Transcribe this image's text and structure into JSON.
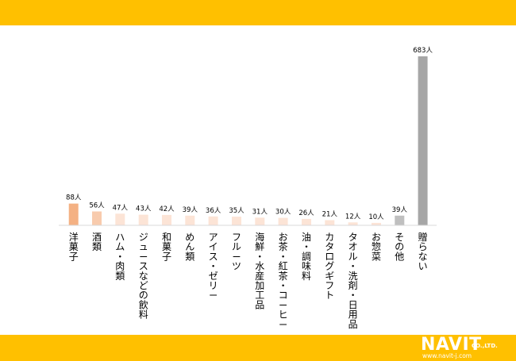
{
  "chart_data": {
    "type": "bar",
    "categories": [
      "洋菓子",
      "酒類",
      "ハム・肉類",
      "ジュースなどの飲料",
      "和菓子",
      "めん類",
      "アイス・ゼリー",
      "フルーツ",
      "海鮮・水産加工品",
      "お茶・紅茶・コーヒー",
      "油・調味料",
      "カタログギフト",
      "タオル・洗剤・日用品",
      "お惣菜",
      "その他",
      "贈らない"
    ],
    "values": [
      88,
      56,
      47,
      43,
      42,
      39,
      36,
      35,
      31,
      30,
      26,
      21,
      12,
      10,
      39,
      683
    ],
    "value_labels": [
      "88人",
      "56人",
      "47人",
      "43人",
      "42人",
      "39人",
      "36人",
      "35人",
      "31人",
      "30人",
      "26人",
      "21人",
      "12人",
      "10人",
      "39人",
      "683人"
    ],
    "bar_colors": [
      "#F4B183",
      "#F8CBAD",
      "#FCE4D6",
      "#FCE4D6",
      "#FCE4D6",
      "#FCE4D6",
      "#FCE4D6",
      "#FCE4D6",
      "#FCE4D6",
      "#FCE4D6",
      "#FCE4D6",
      "#FCE4D6",
      "#FCE4D6",
      "#FCE4D6",
      "#BFBFBF",
      "#A6A6A6"
    ],
    "ylim": [
      0,
      683
    ],
    "grid": false,
    "legend": "none"
  },
  "logo": {
    "brand": "NAVIT",
    "company_suffix": "CO.,LTD.",
    "url": "www.navit-j.com"
  },
  "colors": {
    "band": "#FFC000",
    "axis": "#d9d9d9",
    "text": "#000000"
  }
}
